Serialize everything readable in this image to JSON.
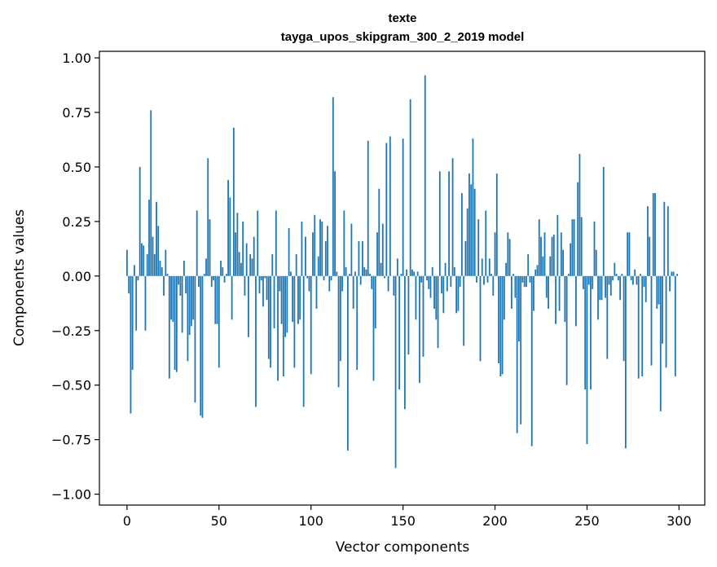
{
  "chart_data": {
    "type": "bar",
    "title": "texte",
    "subtitle": "tayga_upos_skipgram_300_2_2019 model",
    "xlabel": "Vector components",
    "ylabel": "Components values",
    "xlim": [
      -15,
      314
    ],
    "ylim": [
      -1.05,
      1.03
    ],
    "xticks": [
      0,
      50,
      100,
      150,
      200,
      250,
      300
    ],
    "yticks": [
      1.0,
      0.75,
      0.5,
      0.25,
      0.0,
      -0.25,
      -0.5,
      -0.75,
      -1.0
    ],
    "ytick_labels": [
      "1.00",
      "0.75",
      "0.50",
      "0.25",
      "0.00",
      "−0.25",
      "−0.50",
      "−0.75",
      "−1.00"
    ],
    "grid": false,
    "bar_color": "#1f77b4",
    "values": [
      0.12,
      -0.08,
      -0.63,
      -0.43,
      0.05,
      -0.25,
      -0.02,
      0.5,
      0.15,
      0.14,
      -0.25,
      0.1,
      0.35,
      0.76,
      0.18,
      0.1,
      0.34,
      0.23,
      0.07,
      0.04,
      -0.09,
      0.12,
      0.01,
      -0.47,
      -0.2,
      -0.21,
      -0.43,
      -0.44,
      -0.04,
      -0.09,
      -0.26,
      0.07,
      -0.08,
      -0.39,
      -0.27,
      -0.23,
      -0.2,
      -0.58,
      0.3,
      -0.05,
      -0.64,
      -0.65,
      0.01,
      0.08,
      0.54,
      0.26,
      -0.05,
      -0.02,
      -0.22,
      -0.22,
      -0.42,
      0.07,
      0.04,
      -0.03,
      0.01,
      0.44,
      0.36,
      -0.2,
      0.68,
      0.2,
      0.29,
      0.11,
      0.06,
      0.25,
      -0.09,
      0.15,
      -0.28,
      0.1,
      0.08,
      0.18,
      -0.6,
      0.3,
      -0.08,
      -0.02,
      -0.14,
      -0.01,
      -0.11,
      -0.38,
      -0.42,
      0.1,
      -0.24,
      0.3,
      -0.48,
      -0.07,
      -0.22,
      -0.46,
      -0.28,
      -0.26,
      0.22,
      0.02,
      -0.21,
      -0.42,
      0.1,
      -0.22,
      -0.2,
      0.25,
      -0.6,
      0.18,
      -0.01,
      -0.07,
      -0.45,
      0.2,
      0.28,
      -0.15,
      0.09,
      0.26,
      0.25,
      -0.02,
      0.16,
      0.23,
      -0.07,
      -0.02,
      0.82,
      0.48,
      0.02,
      -0.51,
      -0.39,
      -0.07,
      0.3,
      0.04,
      -0.8,
      0.01,
      0.24,
      -0.15,
      0.02,
      -0.43,
      0.16,
      -0.04,
      0.16,
      0.04,
      0.03,
      0.62,
      0.01,
      -0.06,
      -0.48,
      -0.24,
      0.2,
      0.4,
      0.06,
      0.24,
      -0.01,
      0.61,
      -0.07,
      0.64,
      0.0,
      -0.09,
      -0.88,
      0.08,
      -0.52,
      0.01,
      0.63,
      -0.61,
      0.03,
      -0.36,
      0.81,
      0.03,
      0.02,
      -0.2,
      0.02,
      -0.49,
      -0.03,
      -0.37,
      0.92,
      -0.02,
      -0.06,
      -0.1,
      0.04,
      -0.15,
      -0.2,
      -0.33,
      0.48,
      -0.08,
      -0.17,
      0.06,
      -0.07,
      0.48,
      -0.05,
      0.54,
      0.04,
      -0.17,
      -0.16,
      -0.05,
      0.38,
      -0.32,
      0.16,
      0.31,
      0.47,
      0.42,
      0.63,
      0.4,
      -0.03,
      0.26,
      -0.39,
      0.08,
      -0.04,
      0.3,
      -0.03,
      0.08,
      0.01,
      -0.09,
      0.2,
      0.47,
      -0.4,
      -0.46,
      -0.45,
      -0.2,
      0.06,
      0.2,
      0.17,
      -0.15,
      0.01,
      -0.1,
      -0.72,
      -0.3,
      -0.68,
      -0.03,
      -0.05,
      -0.05,
      0.1,
      -0.03,
      -0.78,
      -0.16,
      0.03,
      0.05,
      0.26,
      0.18,
      0.09,
      0.2,
      -0.1,
      -0.15,
      0.09,
      0.18,
      0.19,
      -0.22,
      0.28,
      -0.16,
      0.2,
      0.12,
      -0.21,
      -0.5,
      0.01,
      0.15,
      0.26,
      0.26,
      -0.23,
      0.43,
      0.56,
      0.27,
      -0.06,
      -0.52,
      -0.77,
      -0.04,
      -0.52,
      -0.06,
      0.25,
      0.12,
      -0.2,
      -0.11,
      -0.11,
      0.5,
      -0.1,
      -0.38,
      -0.04,
      -0.09,
      -0.02,
      0.06,
      0.01,
      -0.02,
      -0.11,
      0.01,
      -0.39,
      -0.79,
      0.2,
      0.2,
      -0.02,
      -0.04,
      0.03,
      -0.04,
      -0.47,
      0.01,
      -0.46,
      -0.05,
      -0.12,
      0.32,
      0.18,
      -0.41,
      0.38,
      0.38,
      -0.15,
      -0.13,
      -0.62,
      -0.31,
      0.34,
      -0.42,
      0.32,
      -0.07,
      0.02,
      0.02,
      -0.46,
      0.01
    ]
  }
}
